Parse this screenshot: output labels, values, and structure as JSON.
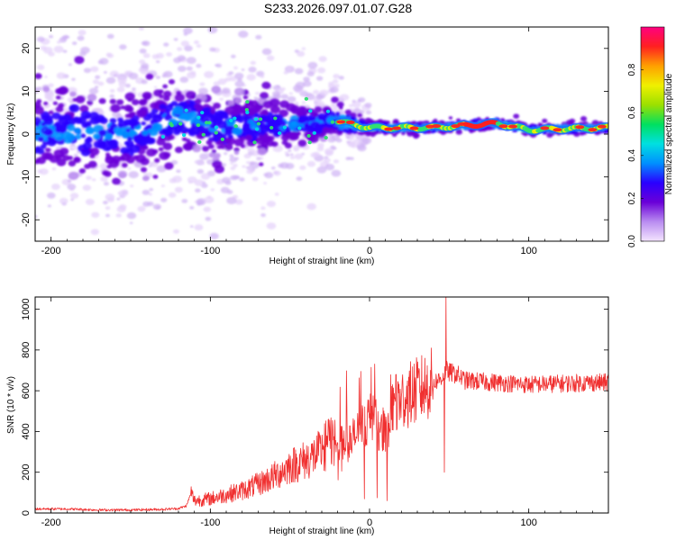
{
  "figure": {
    "title": "S233.2026.097.01.07.G28"
  },
  "chart_data": [
    {
      "type": "heatmap",
      "title": "S233.2026.097.01.07.G28",
      "xlabel": "Height of straight line (km)",
      "ylabel": "Frequency (Hz)",
      "xlim": [
        -210,
        150
      ],
      "ylim": [
        -25,
        25
      ],
      "x_ticks": [
        -200,
        -100,
        0,
        100
      ],
      "y_ticks": [
        -20,
        -10,
        0,
        10,
        20
      ],
      "colorbar": {
        "label": "Normalized spectral amplitude",
        "range": [
          0.0,
          1.0
        ],
        "ticks": [
          "0.0",
          "0.2",
          "0.4",
          "0.6",
          "0.8"
        ],
        "colors": [
          "#f4e4ff",
          "#b98cf0",
          "#6a00d8",
          "#2a00ff",
          "#0090ff",
          "#00e0e0",
          "#00e060",
          "#9be000",
          "#f0f000",
          "#ffa000",
          "#ff2020",
          "#ff0080"
        ]
      },
      "description_points": {
        "center_frequency_by_height": [
          {
            "x": -200,
            "f": 0.5
          },
          {
            "x": -150,
            "f": 0
          },
          {
            "x": -120,
            "f": 4
          },
          {
            "x": -100,
            "f": 2
          },
          {
            "x": -60,
            "f": 2
          },
          {
            "x": -20,
            "f": 3
          },
          {
            "x": 0,
            "f": 1.5
          },
          {
            "x": 40,
            "f": 1.5
          },
          {
            "x": 80,
            "f": 2.5
          },
          {
            "x": 100,
            "f": 1
          },
          {
            "x": 150,
            "f": 1.5
          }
        ],
        "spread_hz_by_height": [
          {
            "x": -210,
            "s": 12
          },
          {
            "x": -120,
            "s": 9
          },
          {
            "x": -60,
            "s": 6
          },
          {
            "x": -20,
            "s": 4
          },
          {
            "x": 0,
            "s": 1.5
          },
          {
            "x": 150,
            "s": 1.5
          }
        ]
      }
    },
    {
      "type": "line",
      "xlabel": "Height of straight line (km)",
      "ylabel": "SNR (10 * v/v)",
      "xlim": [
        -210,
        150
      ],
      "ylim": [
        0,
        1060
      ],
      "x_ticks": [
        -200,
        -100,
        0,
        100
      ],
      "y_ticks": [
        0,
        200,
        400,
        600,
        800,
        1000
      ],
      "color": "#f03030",
      "series": [
        {
          "name": "SNR",
          "x": [
            -210,
            -190,
            -170,
            -150,
            -130,
            -120,
            -115,
            -112,
            -110,
            -100,
            -90,
            -80,
            -70,
            -60,
            -50,
            -40,
            -30,
            -25,
            -20,
            -15,
            -10,
            -5,
            0,
            5,
            10,
            15,
            20,
            30,
            40,
            45,
            48,
            50,
            55,
            60,
            80,
            100,
            120,
            140,
            150
          ],
          "y": [
            20,
            20,
            15,
            15,
            18,
            22,
            35,
            100,
            60,
            70,
            90,
            110,
            140,
            180,
            230,
            260,
            300,
            360,
            350,
            330,
            370,
            420,
            470,
            430,
            400,
            520,
            560,
            600,
            640,
            660,
            700,
            690,
            680,
            650,
            640,
            630,
            635,
            640,
            640
          ]
        }
      ],
      "annotations": [
        {
          "x": 48,
          "y": 1060,
          "note": "spike"
        },
        {
          "x": 47,
          "y": 200,
          "note": "dip"
        },
        {
          "x": 11,
          "y": 60,
          "note": "dip"
        }
      ]
    }
  ]
}
